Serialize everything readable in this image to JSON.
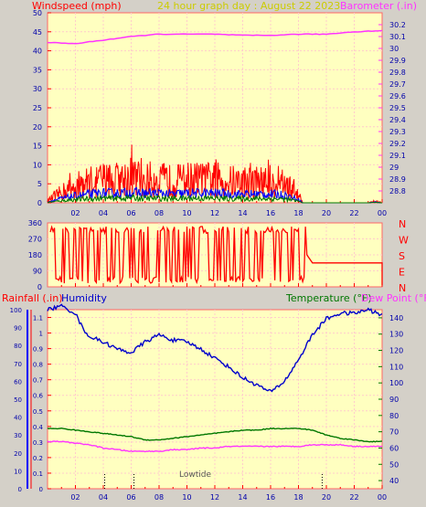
{
  "header": {
    "left": "Windspeed (mph)",
    "center": "24 hour graph day : August 22 2023",
    "right": "Barometer (.in)"
  },
  "colors": {
    "wind": "#ff0000",
    "gust_blue": "#0000ff",
    "avg_green": "#007700",
    "barometer": "#ff33ff",
    "temperature": "#007700",
    "dew_point": "#ff33ff",
    "humidity": "#0000cc",
    "rain": "#ff0000",
    "plot_bg": "#ffffc0",
    "page_bg": "#d4d0c8",
    "header_title": "#cccc00"
  },
  "x_tick_labels": [
    "02",
    "04",
    "06",
    "08",
    "10",
    "12",
    "14",
    "16",
    "18",
    "20",
    "22",
    "00"
  ],
  "direction_labels": [
    "N",
    "W",
    "S",
    "E",
    "N"
  ],
  "panel3_labels": {
    "rain": "Rainfall (.in)",
    "humidity": "Humidity",
    "temperature": "Temperature (°F)",
    "dew": "Dew Point (°F)",
    "lowtide": "Lowtide"
  },
  "chart_data": [
    {
      "type": "line",
      "series": [
        {
          "name": "Windspeed (mph)",
          "x": [
            0,
            1,
            2,
            3,
            4,
            5,
            6,
            7,
            8,
            9,
            10,
            11,
            12,
            13,
            14,
            15,
            16,
            17,
            18,
            18.3,
            19,
            20,
            21,
            22,
            23,
            23.5,
            24
          ],
          "values": [
            1,
            5,
            8,
            10,
            11,
            11,
            12,
            11,
            11,
            10,
            11,
            11,
            11,
            10,
            10,
            10,
            10,
            9,
            4,
            0,
            0,
            0,
            0,
            0,
            0,
            1,
            0
          ]
        },
        {
          "name": "Barometer (.in)",
          "x": [
            0,
            2,
            4,
            6,
            8,
            10,
            12,
            14,
            16,
            18,
            20,
            22,
            24
          ],
          "values": [
            30.05,
            30.04,
            30.07,
            30.1,
            30.12,
            30.12,
            30.12,
            30.11,
            30.11,
            30.12,
            30.12,
            30.14,
            30.15
          ]
        }
      ],
      "y_left": {
        "label": "Windspeed (mph)",
        "ylim": [
          0,
          50
        ],
        "ticks": [
          0,
          5,
          10,
          15,
          20,
          25,
          30,
          35,
          40,
          45,
          50
        ]
      },
      "y_right": {
        "label": "Barometer (.in)",
        "ylim": [
          28.7,
          30.3
        ],
        "ticks": [
          "28.8",
          "28.9",
          "29",
          "29.1",
          "29.2",
          "29.3",
          "29.4",
          "29.5",
          "29.6",
          "29.7",
          "29.8",
          "29.9",
          "30",
          "30.1",
          "30.2"
        ]
      }
    },
    {
      "type": "line",
      "series": [
        {
          "name": "Wind direction",
          "x": [
            0,
            18.5,
            19,
            24
          ],
          "values": [
            180,
            180,
            135,
            135
          ]
        }
      ],
      "ylim": [
        0,
        360
      ],
      "ticks": [
        "0",
        "90",
        "180",
        "270",
        "360"
      ]
    },
    {
      "type": "line",
      "series": [
        {
          "name": "Humidity",
          "x": [
            0,
            1,
            2,
            2.5,
            3,
            4,
            5,
            6,
            7,
            8,
            9,
            10,
            11,
            12,
            13,
            14,
            15,
            16,
            17,
            18,
            19,
            20,
            21,
            22,
            23,
            24
          ],
          "values": [
            100,
            102,
            98,
            90,
            85,
            82,
            78,
            76,
            82,
            86,
            83,
            82,
            78,
            73,
            68,
            62,
            58,
            54,
            60,
            72,
            86,
            95,
            98,
            98,
            100,
            97
          ]
        },
        {
          "name": "Temperature (°F)",
          "x": [
            0,
            1,
            2,
            3,
            4,
            5,
            6,
            7,
            8,
            9,
            10,
            11,
            12,
            13,
            14,
            15,
            16,
            17,
            18,
            19,
            20,
            21,
            22,
            23,
            24
          ],
          "values": [
            72,
            72,
            71,
            70,
            69,
            68,
            67,
            65,
            65,
            66,
            67,
            68,
            69,
            70,
            71,
            71,
            72,
            72,
            72,
            71,
            68,
            66,
            65,
            64,
            64
          ]
        },
        {
          "name": "Dew Point (°F)",
          "x": [
            0,
            1,
            2,
            3,
            4,
            5,
            6,
            7,
            8,
            9,
            10,
            11,
            12,
            13,
            14,
            15,
            16,
            17,
            18,
            19,
            20,
            21,
            22,
            23,
            24
          ],
          "values": [
            64,
            64,
            63,
            62,
            60,
            59,
            58,
            58,
            58,
            59,
            59,
            60,
            60,
            61,
            61,
            61,
            61,
            61,
            61,
            62,
            62,
            62,
            61,
            61,
            61
          ]
        }
      ],
      "y_left": {
        "label": "Humidity",
        "ylim": [
          0,
          100
        ],
        "ticks": [
          "0",
          "10",
          "20",
          "30",
          "40",
          "50",
          "60",
          "70",
          "80",
          "90",
          "100"
        ]
      },
      "y_rain": {
        "label": "Rainfall (.in)",
        "ylim": [
          0,
          1.15
        ],
        "ticks": [
          "0",
          "0.1",
          "0.2",
          "0.3",
          "0.4",
          "0.5",
          "0.6",
          "0.7",
          "0.8",
          "0.9",
          "1",
          "1.1"
        ]
      },
      "y_right": {
        "label": "Temperature (°F)",
        "ylim": [
          35,
          145
        ],
        "ticks": [
          "40",
          "50",
          "60",
          "70",
          "80",
          "90",
          "100",
          "110",
          "120",
          "130",
          "140"
        ]
      }
    }
  ]
}
